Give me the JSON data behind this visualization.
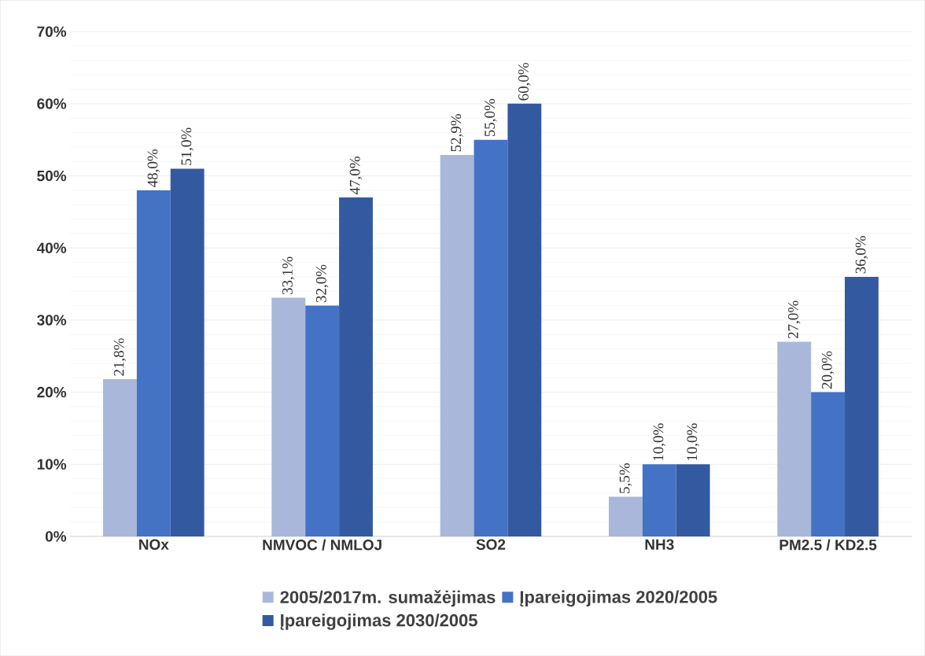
{
  "chart_data": {
    "type": "bar",
    "categories": [
      "NOx",
      "NMVOC / NMLOJ",
      "SO2",
      "NH3",
      "PM2.5 / KD2.5"
    ],
    "series": [
      {
        "name": "2005/2017m. sumažėjimas",
        "color": "#a9b7db",
        "values": [
          21.8,
          33.1,
          52.9,
          5.5,
          27.0
        ],
        "value_labels": [
          "21,8%",
          "33,1%",
          "52,9%",
          "5,5%",
          "27,0%"
        ]
      },
      {
        "name": "Įpareigojimas 2020/2005",
        "color": "#4472c4",
        "values": [
          48.0,
          32.0,
          55.0,
          10.0,
          20.0
        ],
        "value_labels": [
          "48,0%",
          "32,0%",
          "55,0%",
          "10,0%",
          "20,0%"
        ]
      },
      {
        "name": "Įpareigojimas 2030/2005",
        "color": "#335aa1",
        "values": [
          51.0,
          47.0,
          60.0,
          10.0,
          36.0
        ],
        "value_labels": [
          "51,0%",
          "47,0%",
          "60,0%",
          "10,0%",
          "36,0%"
        ]
      }
    ],
    "ylim": [
      0,
      70
    ],
    "yticks": [
      {
        "value": 0,
        "label": "0%"
      },
      {
        "value": 10,
        "label": "10%"
      },
      {
        "value": 20,
        "label": "20%"
      },
      {
        "value": 30,
        "label": "30%"
      },
      {
        "value": 40,
        "label": "40%"
      },
      {
        "value": 50,
        "label": "50%"
      },
      {
        "value": 60,
        "label": "60%"
      },
      {
        "value": 70,
        "label": "70%"
      }
    ],
    "grid": "y",
    "legend": "bottom"
  }
}
